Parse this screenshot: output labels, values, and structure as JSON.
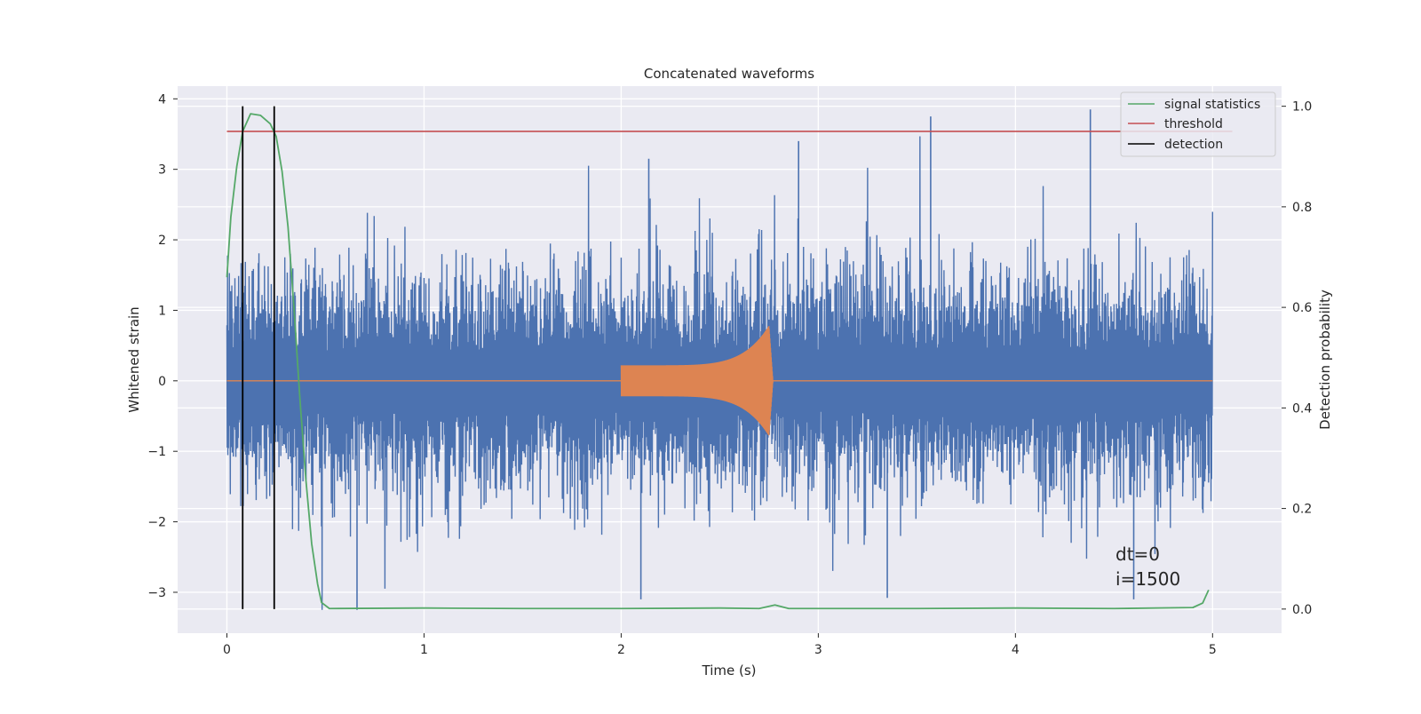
{
  "chart_data": {
    "type": "line",
    "title": "Concatenated waveforms",
    "xlabel": "Time (s)",
    "ylabel_left": "Whitened strain",
    "ylabel_right": "Detection probability",
    "xlim": [
      -0.25,
      5.35
    ],
    "ylim_left": [
      -3.58,
      4.18
    ],
    "ylim_right": [
      -0.048,
      1.04
    ],
    "x_ticks": [
      0,
      1,
      2,
      3,
      4,
      5
    ],
    "y_left_ticks": [
      -3,
      -2,
      -1,
      0,
      1,
      2,
      3,
      4
    ],
    "y_right_ticks": [
      0.0,
      0.2,
      0.4,
      0.6,
      0.8,
      1.0
    ],
    "y_left_tick_labels": [
      "−3",
      "−2",
      "−1",
      "0",
      "1",
      "2",
      "3",
      "4"
    ],
    "y_right_tick_labels": [
      "0.0",
      "0.2",
      "0.4",
      "0.6",
      "0.8",
      "1.0"
    ],
    "grid": true,
    "legend_position": "top-right",
    "series": [
      {
        "name": "",
        "kind": "whitened_strain_noise",
        "color": "#4c72b0",
        "axis": "left",
        "x_range": [
          0,
          5
        ],
        "typical_envelope": [
          -1.6,
          1.6
        ],
        "max": 3.85,
        "min": -3.25
      },
      {
        "name": "",
        "kind": "injected_chirp",
        "color": "#dd8452",
        "axis": "left",
        "x_range": [
          2.0,
          2.77
        ],
        "amplitude_start": 0.22,
        "amplitude_peak": 0.78,
        "peak_time": 2.75
      },
      {
        "name": "signal statistics",
        "color": "#55a868",
        "axis": "right",
        "x": [
          0,
          0.02,
          0.05,
          0.08,
          0.12,
          0.17,
          0.22,
          0.25,
          0.28,
          0.31,
          0.34,
          0.37,
          0.4,
          0.43,
          0.46,
          0.48,
          0.52,
          1.0,
          1.5,
          2.0,
          2.5,
          2.7,
          2.78,
          2.85,
          3.0,
          3.5,
          4.0,
          4.5,
          4.9,
          4.95,
          4.98
        ],
        "values": [
          0.66,
          0.78,
          0.88,
          0.95,
          0.985,
          0.982,
          0.965,
          0.94,
          0.87,
          0.76,
          0.6,
          0.42,
          0.26,
          0.13,
          0.05,
          0.013,
          0.001,
          0.002,
          0.001,
          0.001,
          0.002,
          0.001,
          0.008,
          0.001,
          0.001,
          0.001,
          0.002,
          0.001,
          0.003,
          0.012,
          0.038
        ]
      },
      {
        "name": "threshold",
        "color": "#c44e52",
        "axis": "right",
        "x": [
          0,
          5.1
        ],
        "values": [
          0.95,
          0.95
        ]
      },
      {
        "name": "detection",
        "color": "#000000",
        "axis": "right",
        "x": [
          0.08,
          0.24
        ],
        "range": [
          0.0,
          1.0
        ]
      }
    ],
    "annotations": [
      "dt=0",
      "i=1500"
    ]
  },
  "legend": {
    "items": [
      {
        "label": "signal statistics",
        "color": "#55a868"
      },
      {
        "label": "threshold",
        "color": "#c44e52"
      },
      {
        "label": "detection",
        "color": "#000000"
      }
    ]
  },
  "colors": {
    "axes_background": "#eaeaf2",
    "grid": "#ffffff",
    "text": "#262626"
  }
}
